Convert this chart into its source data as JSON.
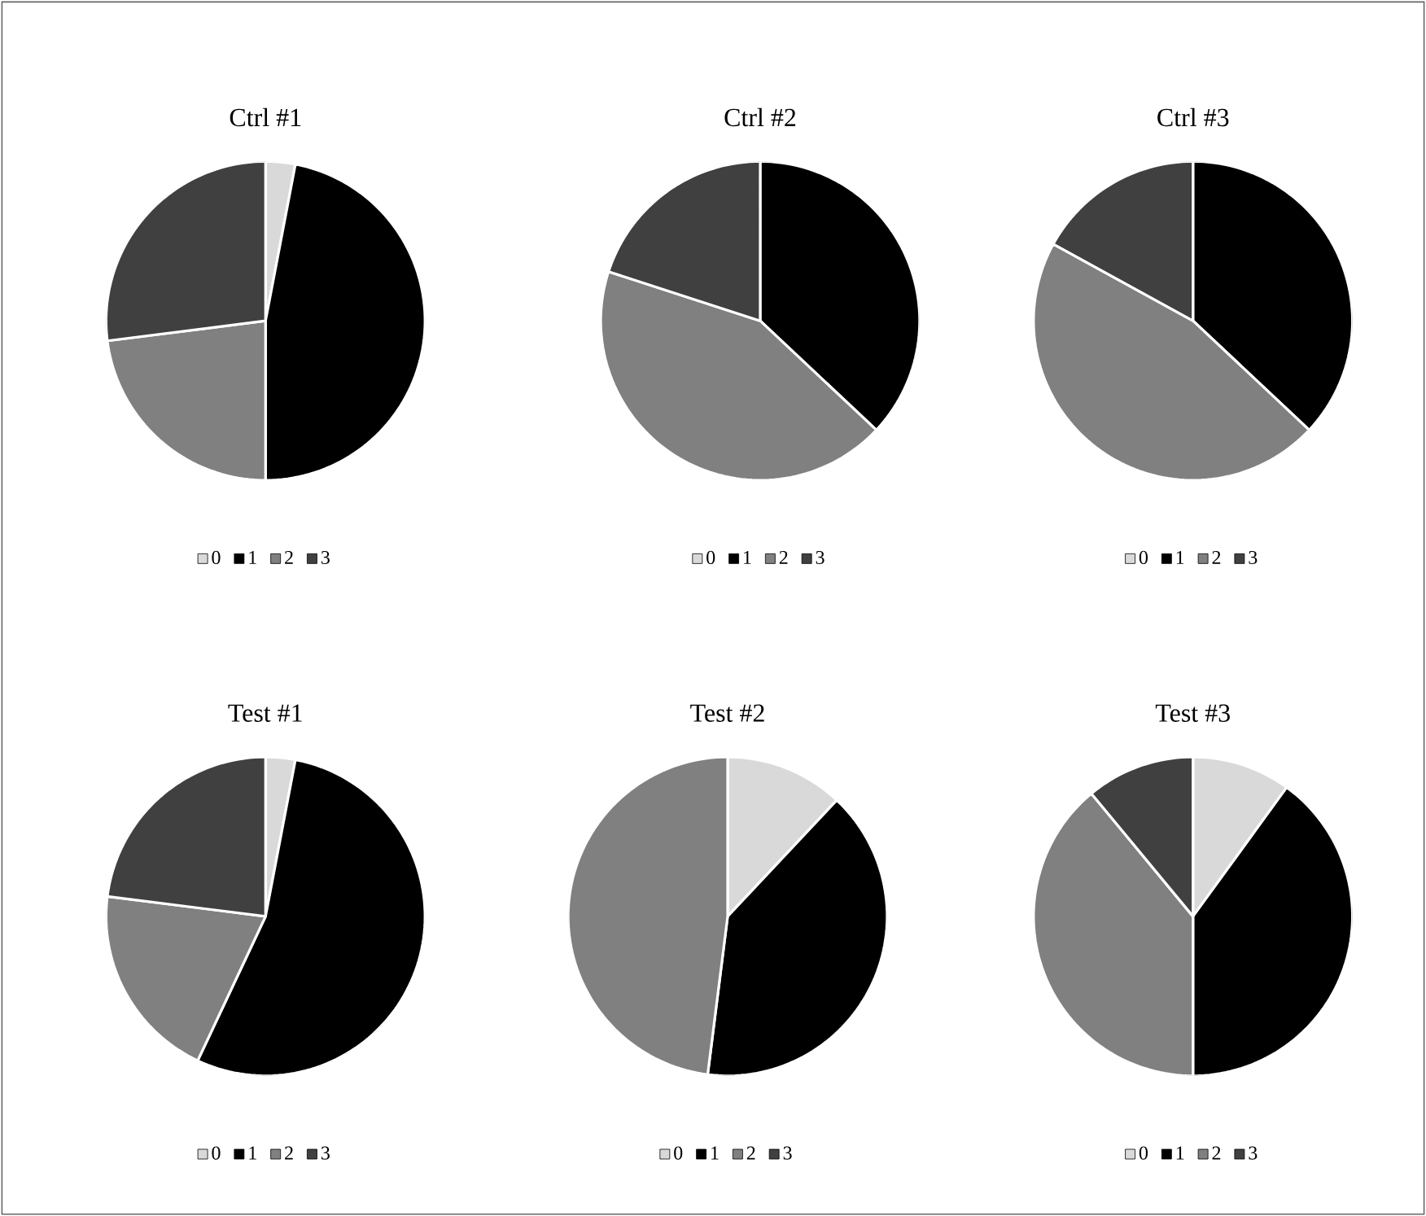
{
  "chart_data": [
    {
      "type": "pie",
      "title": "Ctrl #1",
      "categories": [
        "0",
        "1",
        "2",
        "3"
      ],
      "values": [
        3,
        47,
        23,
        27
      ],
      "colors": [
        "#d9d9d9",
        "#000000",
        "#808080",
        "#404040"
      ],
      "legend": "bottom"
    },
    {
      "type": "pie",
      "title": "Ctrl #2",
      "categories": [
        "0",
        "1",
        "2",
        "3"
      ],
      "values": [
        0,
        37,
        43,
        20
      ],
      "colors": [
        "#d9d9d9",
        "#000000",
        "#808080",
        "#404040"
      ],
      "legend": "bottom"
    },
    {
      "type": "pie",
      "title": "Ctrl #3",
      "categories": [
        "0",
        "1",
        "2",
        "3"
      ],
      "values": [
        0,
        37,
        46,
        17
      ],
      "colors": [
        "#d9d9d9",
        "#000000",
        "#808080",
        "#404040"
      ],
      "legend": "bottom"
    },
    {
      "type": "pie",
      "title": "Test #1",
      "categories": [
        "0",
        "1",
        "2",
        "3"
      ],
      "values": [
        3,
        54,
        20,
        23
      ],
      "colors": [
        "#d9d9d9",
        "#000000",
        "#808080",
        "#404040"
      ],
      "legend": "bottom"
    },
    {
      "type": "pie",
      "title": "Test #2",
      "categories": [
        "0",
        "1",
        "2",
        "3"
      ],
      "values": [
        12,
        40,
        48,
        0
      ],
      "colors": [
        "#d9d9d9",
        "#000000",
        "#808080",
        "#404040"
      ],
      "legend": "bottom"
    },
    {
      "type": "pie",
      "title": "Test #3",
      "categories": [
        "0",
        "1",
        "2",
        "3"
      ],
      "values": [
        10,
        40,
        39,
        11
      ],
      "colors": [
        "#d9d9d9",
        "#000000",
        "#808080",
        "#404040"
      ],
      "legend": "bottom"
    }
  ]
}
